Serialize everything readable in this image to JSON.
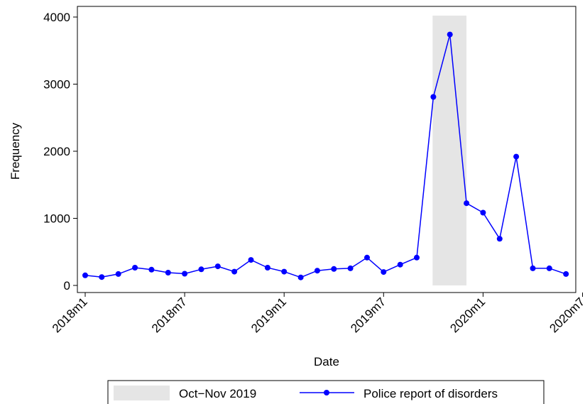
{
  "chart_data": {
    "type": "line",
    "title": "",
    "xlabel": "Date",
    "ylabel": "Frequency",
    "x": [
      "2018m1",
      "2018m2",
      "2018m3",
      "2018m4",
      "2018m5",
      "2018m6",
      "2018m7",
      "2018m8",
      "2018m9",
      "2018m10",
      "2018m11",
      "2018m12",
      "2019m1",
      "2019m2",
      "2019m3",
      "2019m4",
      "2019m5",
      "2019m6",
      "2019m7",
      "2019m8",
      "2019m9",
      "2019m10",
      "2019m11",
      "2019m12",
      "2020m1",
      "2020m2",
      "2020m3",
      "2020m4",
      "2020m5",
      "2020m6"
    ],
    "x_ticks": [
      "2018m1",
      "2018m7",
      "2019m1",
      "2019m7",
      "2020m1",
      "2020m7"
    ],
    "y_ticks": [
      0,
      1000,
      2000,
      3000,
      4000
    ],
    "ylim": [
      0,
      4000
    ],
    "xlim": [
      "2018m1",
      "2020m7"
    ],
    "series": [
      {
        "name": "Police report of disorders",
        "color": "#0000ff",
        "values": [
          150,
          125,
          170,
          265,
          235,
          190,
          175,
          240,
          285,
          205,
          380,
          265,
          205,
          120,
          220,
          245,
          255,
          415,
          200,
          310,
          415,
          2810,
          3740,
          1225,
          1085,
          695,
          1920,
          255,
          255,
          170
        ]
      }
    ],
    "shaded_region": {
      "name": "Oct−Nov 2019",
      "start": "2019m10",
      "end": "2019m12",
      "color": "#e5e5e5"
    },
    "grid": false,
    "legend_position": "bottom"
  }
}
